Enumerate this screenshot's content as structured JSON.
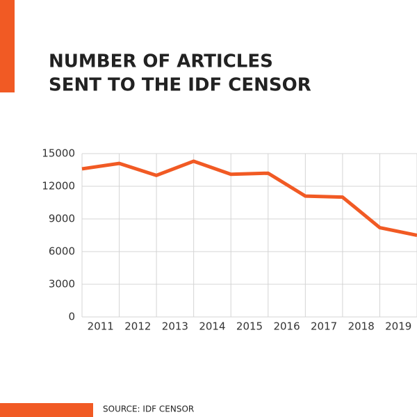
{
  "chart_data": {
    "type": "line",
    "title": [
      "NUMBER OF ARTICLES",
      "SENT TO THE IDF CENSOR"
    ],
    "source": "SOURCE: IDF CENSOR",
    "categories": [
      "2011",
      "2012",
      "2013",
      "2014",
      "2015",
      "2016",
      "2017",
      "2018",
      "2019",
      null
    ],
    "series": [
      {
        "name": "Articles",
        "color": "#f15a24",
        "values": [
          13600,
          14100,
          13000,
          14300,
          13100,
          13200,
          11100,
          11000,
          8200,
          7500
        ]
      }
    ],
    "ylim": [
      0,
      15000
    ],
    "yticks": [
      0,
      3000,
      6000,
      9000,
      12000,
      15000
    ],
    "grid": true
  }
}
